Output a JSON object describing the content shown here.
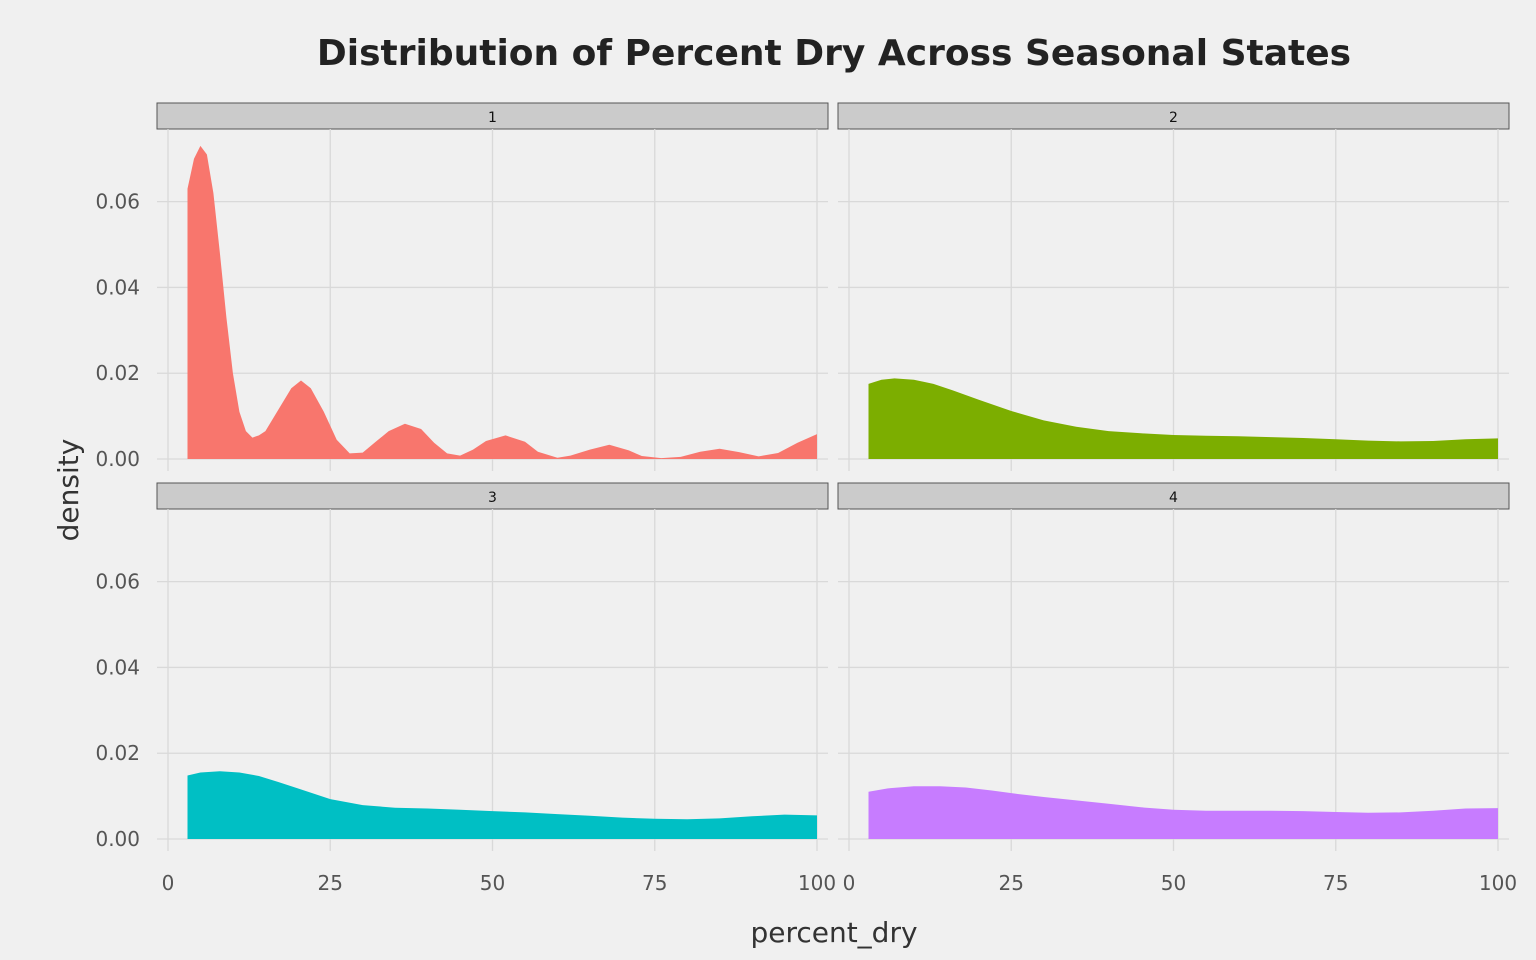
{
  "chart_data": {
    "type": "area",
    "title": "Distribution of Percent Dry Across Seasonal States",
    "xlabel": "percent_dry",
    "ylabel": "density",
    "xlim": [
      0,
      100
    ],
    "ylim": [
      0,
      0.073
    ],
    "x_ticks": [
      0,
      25,
      50,
      75,
      100
    ],
    "x_tick_labels": [
      "0",
      "25",
      "50",
      "75",
      "100"
    ],
    "y_ticks": [
      0,
      0.02,
      0.04,
      0.06
    ],
    "y_tick_labels": [
      "0.00",
      "0.02",
      "0.04",
      "0.06"
    ],
    "grid": true,
    "legend": "none",
    "facets": [
      {
        "label": "1",
        "color": "#F8766D",
        "x": [
          3,
          4,
          5,
          6,
          7,
          8,
          9,
          10,
          11,
          12,
          13,
          14,
          15,
          17,
          19,
          20.5,
          22,
          24,
          26,
          28,
          30,
          32,
          34,
          36.5,
          39,
          41,
          43,
          45,
          47,
          49,
          52,
          55,
          57,
          60,
          62,
          65,
          68,
          71,
          73,
          76,
          79,
          82,
          85,
          88,
          91,
          94,
          97,
          100
        ],
        "y": [
          0.063,
          0.07,
          0.073,
          0.071,
          0.062,
          0.048,
          0.033,
          0.02,
          0.011,
          0.0065,
          0.005,
          0.0055,
          0.0065,
          0.0115,
          0.0165,
          0.0183,
          0.0165,
          0.011,
          0.0045,
          0.0013,
          0.0015,
          0.004,
          0.0065,
          0.0082,
          0.007,
          0.0038,
          0.0013,
          0.0008,
          0.0022,
          0.0042,
          0.0055,
          0.004,
          0.0017,
          0.0003,
          0.0008,
          0.0022,
          0.0033,
          0.002,
          0.0007,
          0.0002,
          0.0005,
          0.0017,
          0.0024,
          0.0016,
          0.0006,
          0.0014,
          0.0038,
          0.0058
        ]
      },
      {
        "label": "2",
        "color": "#7CAE00",
        "x": [
          3,
          5,
          7,
          10,
          13,
          16,
          20,
          25,
          30,
          35,
          40,
          45,
          50,
          55,
          60,
          65,
          70,
          75,
          80,
          85,
          90,
          95,
          100
        ],
        "y": [
          0.0175,
          0.0185,
          0.0188,
          0.0185,
          0.0175,
          0.016,
          0.0138,
          0.0112,
          0.009,
          0.0075,
          0.0065,
          0.006,
          0.0056,
          0.0054,
          0.0053,
          0.0051,
          0.0049,
          0.0046,
          0.0043,
          0.0041,
          0.0042,
          0.0046,
          0.0048
        ]
      },
      {
        "label": "3",
        "color": "#00BFC4",
        "x": [
          3,
          5,
          8,
          11,
          14,
          17,
          20,
          25,
          30,
          35,
          40,
          45,
          50,
          55,
          60,
          65,
          70,
          75,
          80,
          85,
          90,
          95,
          100
        ],
        "y": [
          0.0148,
          0.0155,
          0.0158,
          0.0155,
          0.0147,
          0.0133,
          0.0118,
          0.0093,
          0.0079,
          0.0073,
          0.0071,
          0.0068,
          0.0065,
          0.0062,
          0.0058,
          0.0054,
          0.005,
          0.0047,
          0.0046,
          0.0048,
          0.0053,
          0.0057,
          0.0055
        ]
      },
      {
        "label": "4",
        "color": "#C77CFF",
        "x": [
          3,
          6,
          10,
          14,
          18,
          22,
          26,
          30,
          35,
          40,
          45,
          50,
          55,
          60,
          65,
          70,
          75,
          80,
          85,
          90,
          95,
          100
        ],
        "y": [
          0.011,
          0.0118,
          0.0123,
          0.0123,
          0.012,
          0.0113,
          0.0105,
          0.0098,
          0.009,
          0.0082,
          0.0074,
          0.0068,
          0.0066,
          0.0066,
          0.0066,
          0.0065,
          0.0063,
          0.0061,
          0.0062,
          0.0066,
          0.0071,
          0.0072
        ]
      }
    ]
  }
}
